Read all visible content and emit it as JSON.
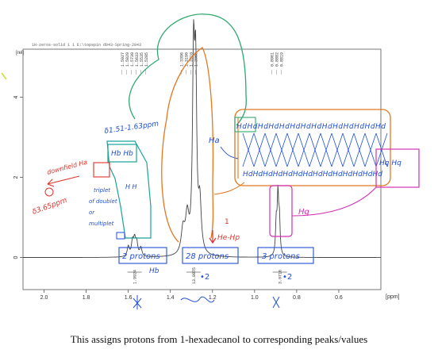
{
  "spectrum_header": "1H-zeros-solid 1 1 E:\\topspin d043-Spring-2043",
  "caption": "This assigns protons from 1-hexadecanol to corresponding peaks/values",
  "colors": {
    "spectrum": "#444444",
    "frame": "#777777",
    "teal": "#19a39a",
    "blue": "#1f4fd6",
    "red": "#e0312a",
    "orange": "#e27722",
    "magenta": "#d62fb3",
    "green": "#2fa86e"
  },
  "annotations": {
    "range_label": "δ1.51-1.63ppm",
    "teal_box": "Hb Hb",
    "teal_box_sub": "H H",
    "triplet_note": "triplet of doublets or multiplet",
    "downfield_note": "downfield Ha",
    "shift_36": "δ3.65ppm",
    "ha_pointer": "Ha",
    "chain_top": "HdHdHdHdHdHdHdHdHdHdHdHdHdHd",
    "chain_bottom": "HdHdHdHdHdHdHdHdHdHdHdHdHdHd",
    "hq_pair": "Hq Hq",
    "hq_label": "Hq",
    "he_label": "He-Hp",
    "integ_2": "2 protons",
    "integ_28": "28 protons",
    "integ_3": "3 protons",
    "hb_label": "Hb",
    "dot2_a": "•2",
    "dot2_b": "•2"
  },
  "chart_data": {
    "type": "line",
    "title": "",
    "xlabel": "[ppm]",
    "ylabel": "[rel]",
    "xlim": [
      2.1,
      0.4
    ],
    "ylim": [
      -0.8,
      5.2
    ],
    "x_ticks": [
      "2.0",
      "1.8",
      "1.6",
      "1.4",
      "1.2",
      "1.0",
      "0.8",
      "0.6"
    ],
    "y_ticks": [
      "0",
      "2",
      "4"
    ],
    "peak_labels": [
      {
        "ppm": 1.5927,
        "text": "1.5927"
      },
      {
        "ppm": 1.5829,
        "text": "1.5829"
      },
      {
        "ppm": 1.573,
        "text": "1.5730"
      },
      {
        "ppm": 1.5633,
        "text": "1.5633"
      },
      {
        "ppm": 1.5535,
        "text": "1.5535"
      },
      {
        "ppm": 1.5285,
        "text": "1.5285"
      },
      {
        "ppm": 1.3396,
        "text": "1.3396"
      },
      {
        "ppm": 1.319,
        "text": "1.3190"
      },
      {
        "ppm": 1.281,
        "text": "1.2810"
      },
      {
        "ppm": 1.2868,
        "text": "1.2868"
      },
      {
        "ppm": 0.8961,
        "text": "0.8961"
      },
      {
        "ppm": 0.8882,
        "text": "0.8882"
      },
      {
        "ppm": 0.8819,
        "text": "0.8819"
      }
    ],
    "integrals": [
      {
        "ppm": 1.57,
        "value": "1.9924"
      },
      {
        "ppm": 1.29,
        "value": "13.8875"
      },
      {
        "ppm": 0.88,
        "value": "3.0716"
      }
    ],
    "peaks": [
      {
        "ppm": 1.6,
        "height": 0.25,
        "width": 0.006
      },
      {
        "ppm": 1.58,
        "height": 0.35,
        "width": 0.006
      },
      {
        "ppm": 1.57,
        "height": 0.38,
        "width": 0.006
      },
      {
        "ppm": 1.56,
        "height": 0.33,
        "width": 0.006
      },
      {
        "ppm": 1.54,
        "height": 0.22,
        "width": 0.006
      },
      {
        "ppm": 1.34,
        "height": 0.6,
        "width": 0.01
      },
      {
        "ppm": 1.32,
        "height": 0.9,
        "width": 0.01
      },
      {
        "ppm": 1.29,
        "height": 4.6,
        "width": 0.006
      },
      {
        "ppm": 1.28,
        "height": 4.2,
        "width": 0.006
      },
      {
        "ppm": 1.26,
        "height": 1.2,
        "width": 0.008
      },
      {
        "ppm": 0.897,
        "height": 0.8,
        "width": 0.004
      },
      {
        "ppm": 0.889,
        "height": 1.45,
        "width": 0.004
      },
      {
        "ppm": 0.882,
        "height": 0.85,
        "width": 0.004
      }
    ]
  }
}
